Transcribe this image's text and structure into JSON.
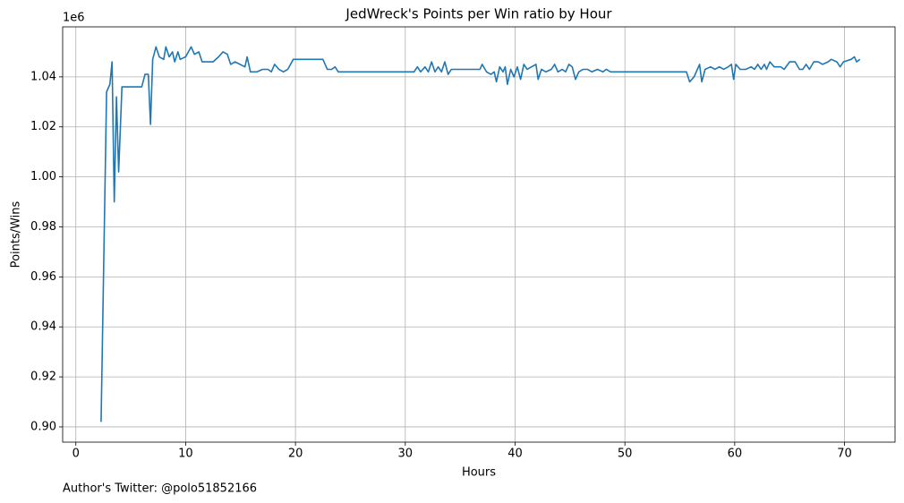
{
  "chart_data": {
    "type": "line",
    "title": "JedWreck's Points per Win ratio by Hour",
    "xlabel": "Hours",
    "ylabel": "Points/Wins",
    "y_offset_label": "1e6",
    "footer": "Author's Twitter: @polo51852166",
    "grid": true,
    "xlim": [
      -1.2,
      74.6
    ],
    "ylim": [
      0.8939,
      1.06
    ],
    "xticks": [
      0,
      10,
      20,
      30,
      40,
      50,
      60,
      70
    ],
    "yticks": [
      {
        "value": 0.9,
        "label": "0.90"
      },
      {
        "value": 0.92,
        "label": "0.92"
      },
      {
        "value": 0.94,
        "label": "0.94"
      },
      {
        "value": 0.96,
        "label": "0.96"
      },
      {
        "value": 0.98,
        "label": "0.98"
      },
      {
        "value": 1.0,
        "label": "1.00"
      },
      {
        "value": 1.02,
        "label": "1.02"
      },
      {
        "value": 1.04,
        "label": "1.04"
      }
    ],
    "x": [
      2.3,
      2.8,
      3.1,
      3.3,
      3.5,
      3.7,
      3.9,
      4.2,
      6.0,
      6.3,
      6.6,
      6.8,
      7.0,
      7.3,
      7.6,
      8.0,
      8.2,
      8.5,
      8.8,
      9.0,
      9.3,
      9.5,
      10.0,
      10.5,
      10.8,
      11.2,
      11.5,
      12.5,
      13.0,
      13.4,
      13.8,
      14.1,
      14.5,
      15.4,
      15.6,
      15.9,
      16.5,
      17.0,
      17.5,
      17.8,
      18.1,
      18.5,
      18.9,
      19.3,
      19.8,
      22.5,
      22.9,
      23.3,
      23.6,
      23.9,
      30.8,
      31.1,
      31.4,
      31.8,
      32.1,
      32.4,
      32.7,
      33.0,
      33.3,
      33.6,
      33.9,
      34.2,
      36.8,
      37.0,
      37.4,
      37.8,
      38.1,
      38.3,
      38.6,
      38.9,
      39.1,
      39.3,
      39.6,
      39.9,
      40.2,
      40.5,
      40.8,
      41.1,
      41.5,
      41.9,
      42.1,
      42.4,
      42.8,
      43.3,
      43.6,
      43.9,
      44.3,
      44.6,
      44.9,
      45.2,
      45.5,
      45.8,
      46.2,
      46.6,
      47.0,
      47.5,
      48.0,
      48.3,
      48.7,
      55.3,
      55.6,
      55.9,
      56.3,
      56.8,
      57.0,
      57.3,
      57.8,
      58.2,
      58.6,
      59.0,
      59.4,
      59.7,
      59.9,
      60.1,
      60.5,
      61.0,
      61.5,
      61.8,
      62.1,
      62.4,
      62.7,
      62.9,
      63.2,
      63.6,
      64.2,
      64.5,
      65.0,
      65.5,
      65.9,
      66.2,
      66.5,
      66.8,
      67.2,
      67.6,
      68.0,
      68.5,
      68.8,
      69.3,
      69.6,
      69.9,
      70.6,
      70.9,
      71.1,
      71.4
    ],
    "series": [
      {
        "name": "Points/Wins",
        "color": "#1f77b4",
        "values": [
          0.902,
          1.034,
          1.037,
          1.046,
          0.99,
          1.032,
          1.002,
          1.036,
          1.036,
          1.041,
          1.041,
          1.021,
          1.047,
          1.052,
          1.048,
          1.047,
          1.052,
          1.048,
          1.05,
          1.046,
          1.05,
          1.047,
          1.048,
          1.052,
          1.049,
          1.05,
          1.046,
          1.046,
          1.048,
          1.05,
          1.049,
          1.045,
          1.046,
          1.044,
          1.048,
          1.042,
          1.042,
          1.043,
          1.043,
          1.042,
          1.045,
          1.043,
          1.042,
          1.043,
          1.047,
          1.047,
          1.043,
          1.043,
          1.044,
          1.042,
          1.042,
          1.044,
          1.042,
          1.044,
          1.042,
          1.046,
          1.042,
          1.044,
          1.042,
          1.046,
          1.041,
          1.043,
          1.043,
          1.045,
          1.042,
          1.041,
          1.042,
          1.038,
          1.044,
          1.042,
          1.044,
          1.037,
          1.043,
          1.04,
          1.044,
          1.039,
          1.045,
          1.043,
          1.044,
          1.045,
          1.039,
          1.043,
          1.042,
          1.043,
          1.045,
          1.042,
          1.043,
          1.042,
          1.045,
          1.044,
          1.039,
          1.042,
          1.043,
          1.043,
          1.042,
          1.043,
          1.042,
          1.043,
          1.042,
          1.042,
          1.042,
          1.038,
          1.04,
          1.045,
          1.038,
          1.043,
          1.044,
          1.043,
          1.044,
          1.043,
          1.044,
          1.045,
          1.039,
          1.045,
          1.043,
          1.043,
          1.044,
          1.043,
          1.045,
          1.043,
          1.045,
          1.043,
          1.046,
          1.044,
          1.044,
          1.043,
          1.046,
          1.046,
          1.043,
          1.043,
          1.045,
          1.043,
          1.046,
          1.046,
          1.045,
          1.046,
          1.047,
          1.046,
          1.044,
          1.046,
          1.047,
          1.048,
          1.046,
          1.047
        ]
      }
    ]
  }
}
